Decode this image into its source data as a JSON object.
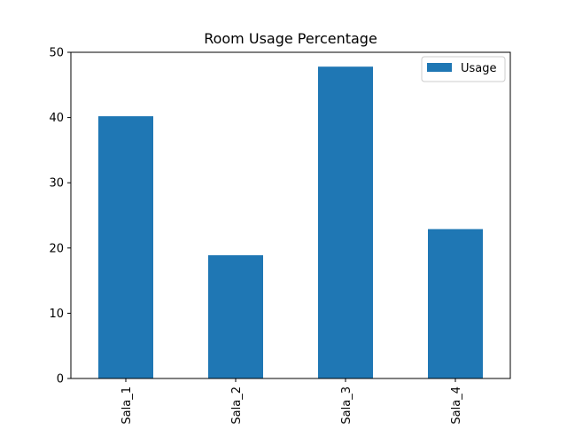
{
  "chart_data": {
    "type": "bar",
    "title": "Room Usage Percentage",
    "xlabel": "",
    "ylabel": "",
    "categories": [
      "Sala_1",
      "Sala_2",
      "Sala_3",
      "Sala_4"
    ],
    "series": [
      {
        "name": "Usage",
        "values": [
          40.2,
          18.9,
          47.8,
          22.9
        ],
        "color": "#1f77b4"
      }
    ],
    "ylim": [
      0,
      50
    ],
    "yticks": [
      0,
      10,
      20,
      30,
      40,
      50
    ],
    "grid": false,
    "legend_position": "top-right",
    "x_tick_rotation": "vertical"
  }
}
